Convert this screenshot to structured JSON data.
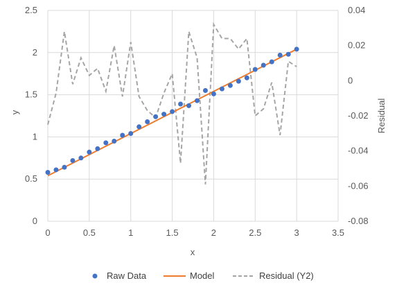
{
  "chart_data": {
    "type": "scatter",
    "xlabel": "x",
    "ylabel": "y",
    "y2label": "Residual",
    "xlim": [
      0,
      3.5
    ],
    "ylim": [
      0,
      2.5
    ],
    "y2lim": [
      -0.08,
      0.04
    ],
    "x_ticks": [
      "0",
      "0.5",
      "1",
      "1.5",
      "2",
      "2.5",
      "3",
      "3.5"
    ],
    "y_ticks": [
      "0",
      "0.5",
      "1",
      "1.5",
      "2",
      "2.5"
    ],
    "y2_ticks": [
      "-0.08",
      "-0.06",
      "-0.04",
      "-0.02",
      "0",
      "0.02",
      "0.04"
    ],
    "grid": true,
    "legend_position": "bottom",
    "series": [
      {
        "name": "Raw Data",
        "kind": "scatter",
        "axis": "y",
        "color": "#4472C4",
        "x": [
          0,
          0.1,
          0.2,
          0.3,
          0.4,
          0.5,
          0.6,
          0.7,
          0.8,
          0.9,
          1.0,
          1.1,
          1.2,
          1.3,
          1.4,
          1.5,
          1.6,
          1.7,
          1.8,
          1.9,
          2.0,
          2.1,
          2.2,
          2.3,
          2.4,
          2.5,
          2.6,
          2.7,
          2.8,
          2.9,
          3.0
        ],
        "y": [
          0.58,
          0.61,
          0.64,
          0.72,
          0.75,
          0.82,
          0.86,
          0.93,
          0.95,
          1.02,
          1.04,
          1.12,
          1.18,
          1.24,
          1.27,
          1.3,
          1.39,
          1.37,
          1.43,
          1.55,
          1.51,
          1.57,
          1.61,
          1.66,
          1.7,
          1.8,
          1.85,
          1.89,
          1.97,
          1.98,
          2.04
        ]
      },
      {
        "name": "Model",
        "kind": "line",
        "axis": "y",
        "color": "#ED7D31",
        "x": [
          0,
          3.0
        ],
        "y": [
          0.54,
          2.04
        ]
      },
      {
        "name": "Residual (Y2)",
        "kind": "dashed-line",
        "axis": "y2",
        "color": "#A5A5A5",
        "x": [
          0,
          0.1,
          0.2,
          0.3,
          0.4,
          0.5,
          0.6,
          0.7,
          0.8,
          0.9,
          1.0,
          1.1,
          1.2,
          1.3,
          1.4,
          1.5,
          1.6,
          1.7,
          1.8,
          1.9,
          2.0,
          2.1,
          2.2,
          2.3,
          2.4,
          2.5,
          2.6,
          2.7,
          2.8,
          2.9,
          3.0
        ],
        "y": [
          -0.025,
          -0.007,
          0.028,
          -0.002,
          0.013,
          0.003,
          0.007,
          -0.006,
          0.02,
          -0.009,
          0.022,
          -0.009,
          -0.017,
          -0.021,
          -0.007,
          0.004,
          -0.047,
          0.028,
          0.013,
          -0.059,
          0.032,
          0.024,
          0.024,
          0.018,
          0.024,
          -0.02,
          -0.016,
          -0.001,
          -0.031,
          0.011,
          0.008
        ]
      }
    ]
  }
}
